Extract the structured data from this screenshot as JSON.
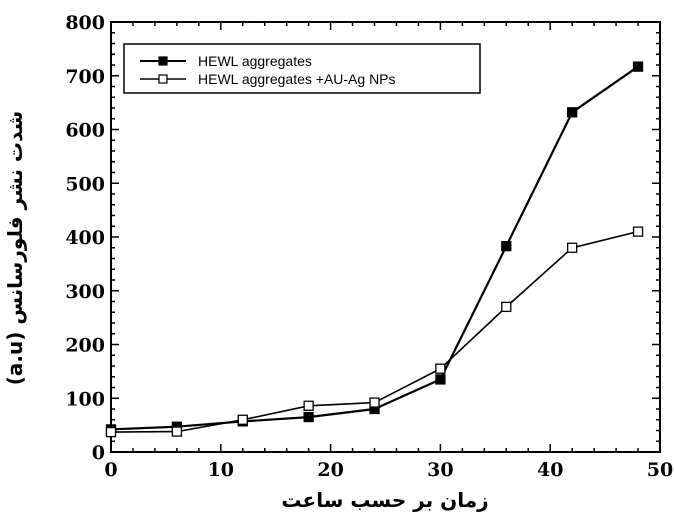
{
  "chart_data": {
    "type": "line",
    "title": "",
    "xlabel": "زمان بر حسب ساعت",
    "ylabel": "شدت نشر فلورسانس (a.u)",
    "xlim": [
      0,
      50
    ],
    "ylim": [
      0,
      800
    ],
    "xticks": [
      0,
      10,
      20,
      30,
      40,
      50
    ],
    "yticks": [
      0,
      100,
      200,
      300,
      400,
      500,
      600,
      700,
      800
    ],
    "legend_position": "top-left",
    "grid": false,
    "series": [
      {
        "name": "HEWL aggregates",
        "marker": "filled-square",
        "color": "#000000",
        "x": [
          0,
          6,
          12,
          18,
          24,
          30,
          36,
          42,
          48
        ],
        "y": [
          42,
          47,
          57,
          65,
          80,
          135,
          383,
          632,
          717
        ]
      },
      {
        "name": "HEWL aggregates +AU-Ag NPs",
        "marker": "open-square",
        "color": "#000000",
        "x": [
          0,
          6,
          12,
          18,
          24,
          30,
          36,
          42,
          48
        ],
        "y": [
          37,
          38,
          60,
          86,
          92,
          155,
          270,
          380,
          410
        ]
      }
    ]
  }
}
